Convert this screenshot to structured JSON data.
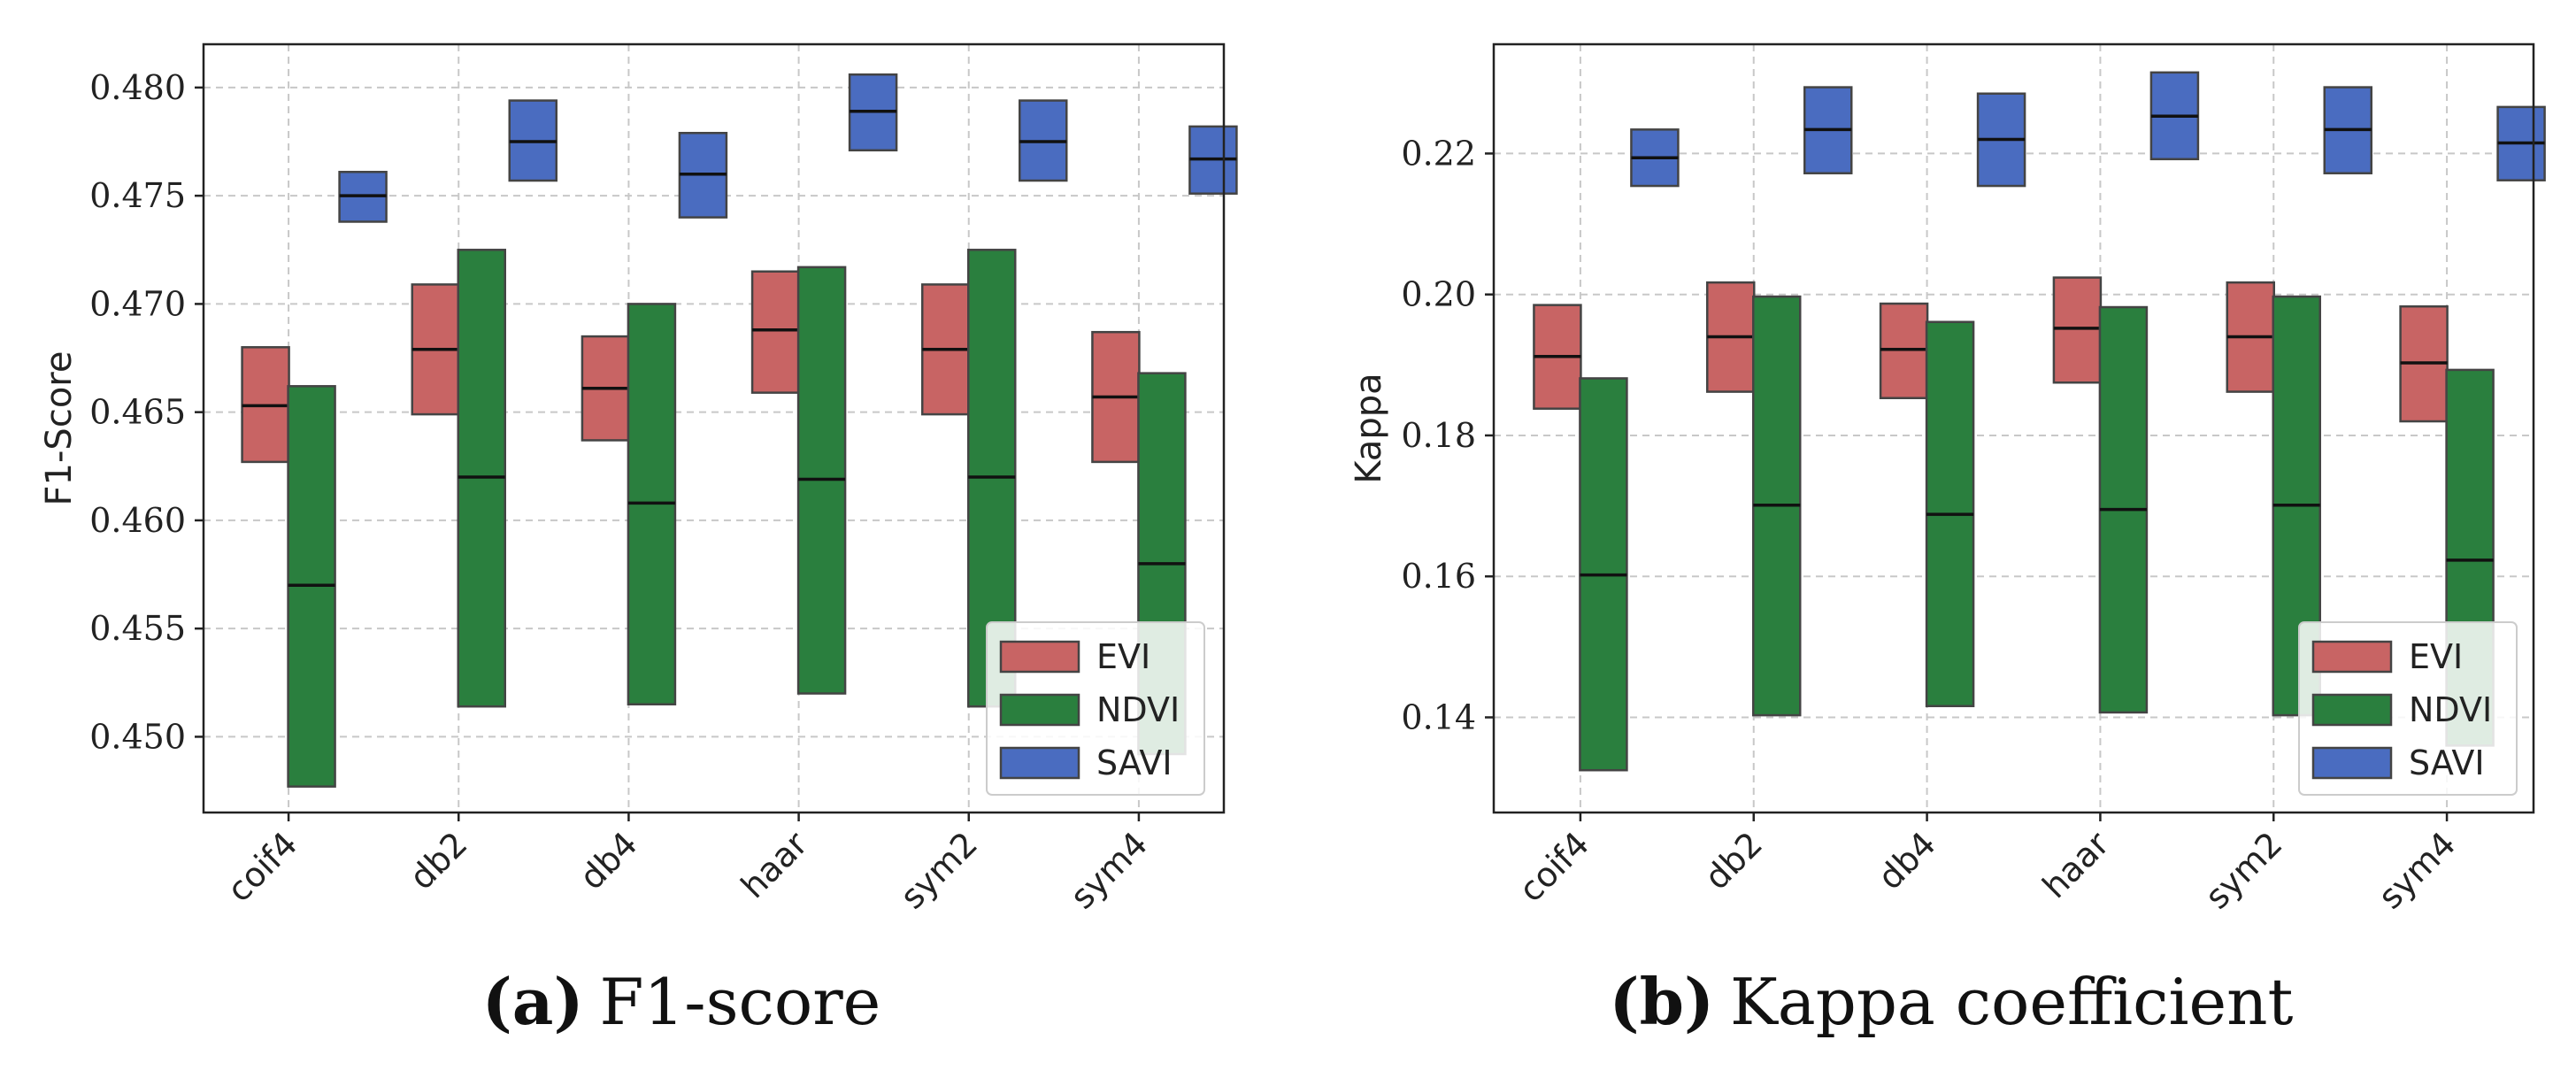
{
  "chart_data": [
    {
      "type": "box",
      "id": "f1",
      "ylabel": "F1-Score",
      "xlabel": "",
      "ylim": [
        0.4465,
        0.482
      ],
      "yticks": [
        0.45,
        0.455,
        0.46,
        0.465,
        0.47,
        0.475,
        0.48
      ],
      "ytick_labels": [
        "0.450",
        "0.455",
        "0.460",
        "0.465",
        "0.470",
        "0.475",
        "0.480"
      ],
      "categories": [
        "coif4",
        "db2",
        "db4",
        "haar",
        "sym2",
        "sym4"
      ],
      "series": [
        {
          "name": "EVI",
          "color": "#c86464",
          "boxes": [
            {
              "low": 0.4627,
              "median": 0.4653,
              "high": 0.468
            },
            {
              "low": 0.4649,
              "median": 0.4679,
              "high": 0.4709
            },
            {
              "low": 0.4637,
              "median": 0.4661,
              "high": 0.4685
            },
            {
              "low": 0.4659,
              "median": 0.4688,
              "high": 0.4715
            },
            {
              "low": 0.4649,
              "median": 0.4679,
              "high": 0.4709
            },
            {
              "low": 0.4627,
              "median": 0.4657,
              "high": 0.4687
            }
          ]
        },
        {
          "name": "NDVI",
          "color": "#2a7f3e",
          "boxes": [
            {
              "low": 0.4477,
              "median": 0.457,
              "high": 0.4662
            },
            {
              "low": 0.4514,
              "median": 0.462,
              "high": 0.4725
            },
            {
              "low": 0.4515,
              "median": 0.4608,
              "high": 0.47
            },
            {
              "low": 0.452,
              "median": 0.4619,
              "high": 0.4717
            },
            {
              "low": 0.4514,
              "median": 0.462,
              "high": 0.4725
            },
            {
              "low": 0.4492,
              "median": 0.458,
              "high": 0.4668
            }
          ]
        },
        {
          "name": "SAVI",
          "color": "#4a6cc0",
          "boxes": [
            {
              "low": 0.4738,
              "median": 0.475,
              "high": 0.4761
            },
            {
              "low": 0.4757,
              "median": 0.4775,
              "high": 0.4794
            },
            {
              "low": 0.474,
              "median": 0.476,
              "high": 0.4779
            },
            {
              "low": 0.4771,
              "median": 0.4789,
              "high": 0.4806
            },
            {
              "low": 0.4757,
              "median": 0.4775,
              "high": 0.4794
            },
            {
              "low": 0.4751,
              "median": 0.4767,
              "high": 0.4782
            }
          ]
        }
      ],
      "legend": [
        "EVI",
        "NDVI",
        "SAVI"
      ],
      "legend_position": "lower-right",
      "grid": true,
      "caption_letter": "(a)",
      "caption_text": "F1-score"
    },
    {
      "type": "box",
      "id": "kappa",
      "ylabel": "Kappa",
      "xlabel": "",
      "ylim": [
        0.1265,
        0.2355
      ],
      "yticks": [
        0.14,
        0.16,
        0.18,
        0.2,
        0.22
      ],
      "ytick_labels": [
        "0.14",
        "0.16",
        "0.18",
        "0.20",
        "0.22"
      ],
      "categories": [
        "coif4",
        "db2",
        "db4",
        "haar",
        "sym2",
        "sym4"
      ],
      "series": [
        {
          "name": "EVI",
          "color": "#c86464",
          "boxes": [
            {
              "low": 0.1838,
              "median": 0.1912,
              "high": 0.1985
            },
            {
              "low": 0.1862,
              "median": 0.194,
              "high": 0.2017
            },
            {
              "low": 0.1853,
              "median": 0.1922,
              "high": 0.1987
            },
            {
              "low": 0.1875,
              "median": 0.1952,
              "high": 0.2024
            },
            {
              "low": 0.1862,
              "median": 0.194,
              "high": 0.2017
            },
            {
              "low": 0.182,
              "median": 0.1903,
              "high": 0.1983
            }
          ]
        },
        {
          "name": "NDVI",
          "color": "#2a7f3e",
          "boxes": [
            {
              "low": 0.1325,
              "median": 0.1602,
              "high": 0.1881
            },
            {
              "low": 0.1403,
              "median": 0.1701,
              "high": 0.1997
            },
            {
              "low": 0.1416,
              "median": 0.1688,
              "high": 0.1961
            },
            {
              "low": 0.1407,
              "median": 0.1695,
              "high": 0.1982
            },
            {
              "low": 0.1403,
              "median": 0.1701,
              "high": 0.1997
            },
            {
              "low": 0.136,
              "median": 0.1623,
              "high": 0.1893
            }
          ]
        },
        {
          "name": "SAVI",
          "color": "#4a6cc0",
          "boxes": [
            {
              "low": 0.2154,
              "median": 0.2194,
              "high": 0.2234
            },
            {
              "low": 0.2172,
              "median": 0.2234,
              "high": 0.2294
            },
            {
              "low": 0.2154,
              "median": 0.222,
              "high": 0.2285
            },
            {
              "low": 0.2192,
              "median": 0.2253,
              "high": 0.2315
            },
            {
              "low": 0.2172,
              "median": 0.2234,
              "high": 0.2294
            },
            {
              "low": 0.2162,
              "median": 0.2215,
              "high": 0.2266
            }
          ]
        }
      ],
      "legend": [
        "EVI",
        "NDVI",
        "SAVI"
      ],
      "legend_position": "lower-right",
      "grid": true,
      "caption_letter": "(b)",
      "caption_text": "Kappa coefficient"
    }
  ]
}
